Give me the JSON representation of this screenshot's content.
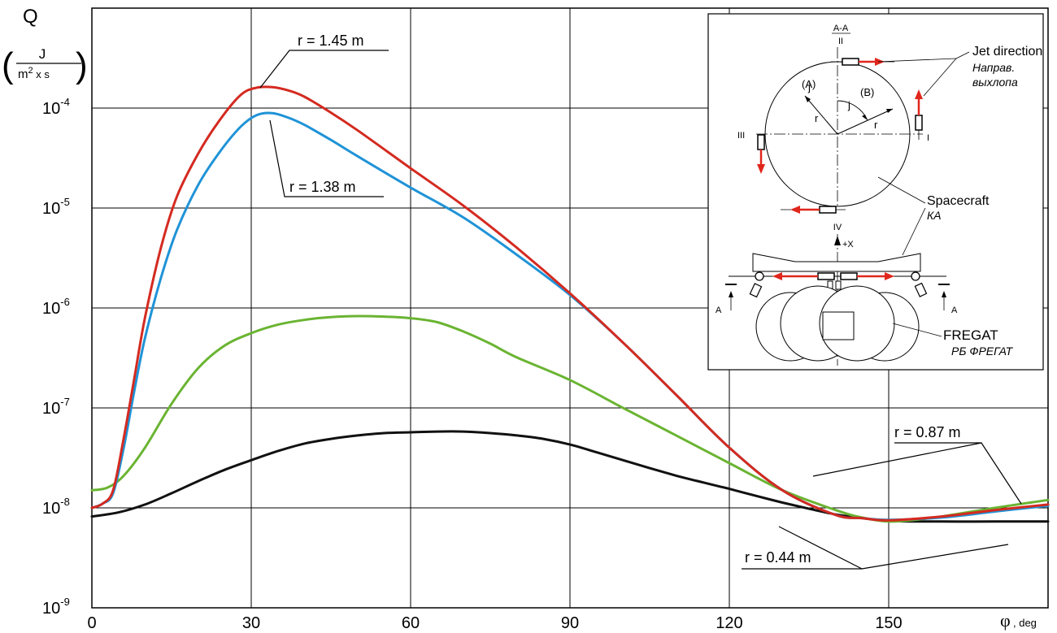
{
  "chart_data": {
    "type": "line",
    "y_scale": "log",
    "grid": true,
    "xlim": [
      0,
      180
    ],
    "ylim": [
      1e-09,
      0.001
    ],
    "x_ticks": [
      "0",
      "30",
      "60",
      "90",
      "120",
      "150"
    ],
    "y_ticks": [
      {
        "base": "10",
        "exp": "-9"
      },
      {
        "base": "10",
        "exp": "-8"
      },
      {
        "base": "10",
        "exp": "-7"
      },
      {
        "base": "10",
        "exp": "-6"
      },
      {
        "base": "10",
        "exp": "-5"
      },
      {
        "base": "10",
        "exp": "-4"
      }
    ],
    "ylabel": {
      "symbol": "Q",
      "open": "(",
      "numerator": "J",
      "denominator": "m",
      "denominator_exp": "2",
      "denominator_rest": " x s",
      "close": ")"
    },
    "xlabel": {
      "symbol": "φ",
      "unit": ", deg"
    },
    "series": [
      {
        "name": "r = 1.45 m",
        "color": "#d42a20",
        "x": [
          0,
          2,
          4,
          6,
          8,
          10,
          13,
          16,
          20,
          24,
          28,
          31,
          34,
          37,
          40,
          45,
          50,
          60,
          70,
          80,
          90,
          100,
          110,
          120,
          130,
          140,
          145,
          150,
          160,
          170,
          180
        ],
        "y": [
          1e-08,
          1.1e-08,
          1.5e-08,
          5e-08,
          2e-07,
          8e-07,
          4e-06,
          1.3e-05,
          3.5e-05,
          7.5e-05,
          0.000135,
          0.00016,
          0.000162,
          0.00015,
          0.00013,
          9e-05,
          6e-05,
          2.5e-05,
          1.05e-05,
          4e-06,
          1.4e-06,
          4.5e-07,
          1.35e-07,
          4e-08,
          1.5e-08,
          8.5e-09,
          7.9e-09,
          7.5e-09,
          8.2e-09,
          9.5e-09,
          1.08e-08
        ]
      },
      {
        "name": "r = 1.38 m",
        "color": "#1f93d7",
        "x": [
          0,
          2,
          4,
          6,
          8,
          10,
          13,
          16,
          20,
          24,
          28,
          31,
          34,
          37,
          40,
          45,
          50,
          60,
          70,
          80,
          90,
          100,
          110,
          120,
          130,
          140,
          145,
          150,
          160,
          170,
          180
        ],
        "y": [
          1e-08,
          1.1e-08,
          1.4e-08,
          4e-08,
          1.5e-07,
          5e-07,
          2e-06,
          6e-06,
          1.7e-05,
          3.6e-05,
          6.5e-05,
          8.5e-05,
          8.9e-05,
          8e-05,
          6.8e-05,
          4.8e-05,
          3.3e-05,
          1.6e-05,
          8e-06,
          3.4e-06,
          1.35e-06,
          4.5e-07,
          1.35e-07,
          4e-08,
          1.5e-08,
          8.5e-09,
          7.9e-09,
          7.6e-09,
          8e-09,
          9.2e-09,
          1.05e-08
        ]
      },
      {
        "name": "",
        "color": "#6ab432",
        "x": [
          0,
          3,
          6,
          10,
          15,
          20,
          25,
          30,
          35,
          40,
          45,
          50,
          55,
          60,
          65,
          70,
          75,
          80,
          90,
          100,
          110,
          120,
          130,
          140,
          145,
          150,
          155,
          160,
          170,
          180
        ],
        "y": [
          1.5e-08,
          1.6e-08,
          2.1e-08,
          4e-08,
          1.1e-07,
          2.5e-07,
          4.2e-07,
          5.6e-07,
          6.8e-07,
          7.6e-07,
          8.1e-07,
          8.3e-07,
          8.2e-07,
          7.9e-07,
          7.2e-07,
          5.8e-07,
          4.4e-07,
          3.2e-07,
          1.9e-07,
          1e-07,
          5.3e-08,
          2.8e-08,
          1.5e-08,
          9.5e-09,
          8e-09,
          7.3e-09,
          7.6e-09,
          8.2e-09,
          1e-08,
          1.2e-08
        ]
      },
      {
        "name": "",
        "color": "#111111",
        "x": [
          0,
          5,
          10,
          15,
          20,
          25,
          30,
          35,
          40,
          45,
          50,
          55,
          60,
          65,
          70,
          75,
          80,
          85,
          90,
          95,
          100,
          105,
          110,
          115,
          120,
          125,
          130,
          135,
          140,
          145,
          150,
          160,
          170,
          180
        ],
        "y": [
          8.2e-09,
          9e-09,
          1.08e-08,
          1.4e-08,
          1.85e-08,
          2.4e-08,
          3e-08,
          3.7e-08,
          4.4e-08,
          4.9e-08,
          5.3e-08,
          5.6e-08,
          5.7e-08,
          5.8e-08,
          5.8e-08,
          5.6e-08,
          5.3e-08,
          4.9e-08,
          4.3e-08,
          3.6e-08,
          3e-08,
          2.5e-08,
          2.1e-08,
          1.8e-08,
          1.55e-08,
          1.32e-08,
          1.13e-08,
          9.8e-09,
          8.6e-09,
          7.9e-09,
          7.4e-09,
          7.3e-09,
          7.3e-09,
          7.3e-09
        ]
      }
    ],
    "annotations": {
      "label_145": "r = 1.45 m",
      "label_138": "r = 1.38 m",
      "label_087": "r = 0.87 m",
      "label_044": "r = 0.44 m"
    }
  },
  "inset": {
    "section": "A-A",
    "roman_ii": "II",
    "roman_iii": "III",
    "roman_i": "I",
    "roman_iv": "IV",
    "sector_a": "(A)",
    "sector_b": "(B)",
    "letter_j1": "j",
    "letter_j2": "j",
    "letter_r1": "r",
    "letter_r2": "r",
    "plus_x": "+X",
    "jet_en": "Jet direction",
    "jet_ru1": "Направ.",
    "jet_ru2": "выхлопа",
    "sc_en": "Spacecraft",
    "sc_ru": "КА",
    "fregat_en": "FREGAT",
    "fregat_ru": "РБ ФРЕГАТ",
    "cut_left": "A",
    "cut_right": "A"
  }
}
